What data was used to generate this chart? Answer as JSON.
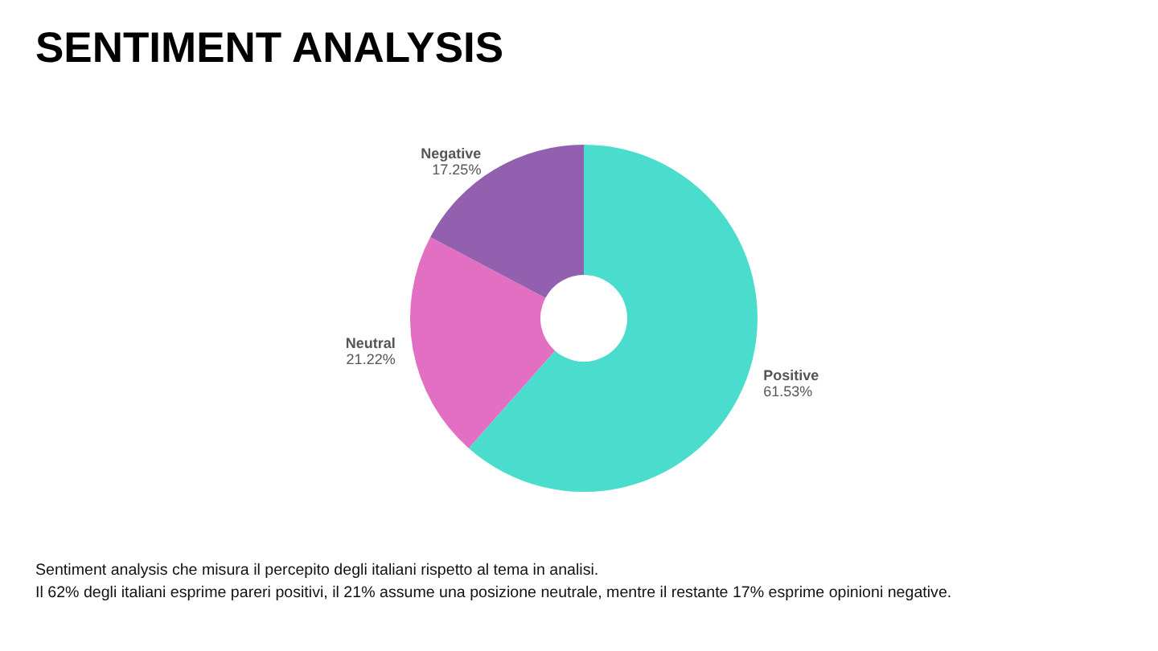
{
  "chart_data": {
    "type": "donut",
    "title": "SENTIMENT ANALYSIS",
    "categories": [
      "Positive",
      "Neutral",
      "Negative"
    ],
    "values": [
      61.53,
      21.22,
      17.25
    ],
    "colors": [
      "#4adccc",
      "#e36fc3",
      "#9360b0"
    ],
    "value_labels": [
      "61.53%",
      "21.22%",
      "17.25%"
    ],
    "annotations": [
      "Sentiment analysis che misura il percepito degli italiani rispetto al tema in analisi.",
      "Il 62% degli italiani esprime pareri positivi, il 21% assume una posizione neutrale, mentre il restante 17% esprime opinioni negative."
    ]
  }
}
